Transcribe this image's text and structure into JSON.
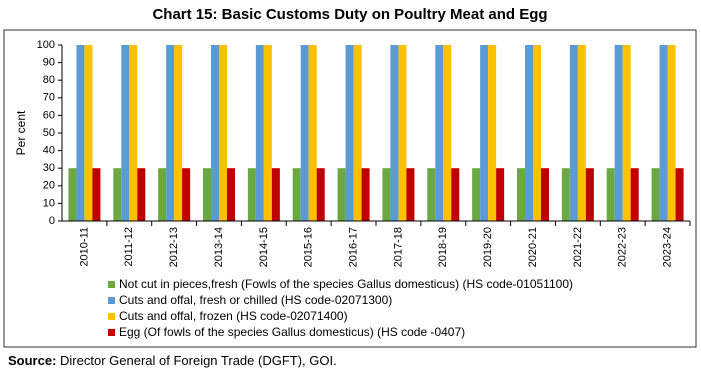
{
  "chart_data": {
    "type": "bar",
    "title": "Chart 15: Basic Customs Duty on Poultry Meat and Egg",
    "y_label": "Per cent",
    "categories": [
      "2010-11",
      "2011-12",
      "2012-13",
      "2013-14",
      "2014-15",
      "2015-16",
      "2016-17",
      "2017-18",
      "2018-19",
      "2019-20",
      "2020-21",
      "2021-22",
      "2022-23",
      "2023-24"
    ],
    "series": [
      {
        "name": "Not cut in pieces,fresh (Fowls of the species Gallus domesticus) (HS code-01051100)",
        "color": "#6aa842",
        "values": [
          30,
          30,
          30,
          30,
          30,
          30,
          30,
          30,
          30,
          30,
          30,
          30,
          30,
          30
        ]
      },
      {
        "name": "Cuts and  offal, fresh or chilled (HS code-02071300)",
        "color": "#5b9bd5",
        "values": [
          100,
          100,
          100,
          100,
          100,
          100,
          100,
          100,
          100,
          100,
          100,
          100,
          100,
          100
        ]
      },
      {
        "name": "Cuts and offal, frozen (HS code-02071400)",
        "color": "#ffc000",
        "values": [
          100,
          100,
          100,
          100,
          100,
          100,
          100,
          100,
          100,
          100,
          100,
          100,
          100,
          100
        ]
      },
      {
        "name": "Egg (Of fowls of the species Gallus domesticus) (HS code -0407)",
        "color": "#c00000",
        "values": [
          30,
          30,
          30,
          30,
          30,
          30,
          30,
          30,
          30,
          30,
          30,
          30,
          30,
          30
        ]
      }
    ],
    "ylim": [
      0,
      100
    ],
    "yticks": [
      0,
      10,
      20,
      30,
      40,
      50,
      60,
      70,
      80,
      90,
      100
    ],
    "source_label": "Source:",
    "source": "Director General of Foreign Trade (DGFT), GOI."
  }
}
